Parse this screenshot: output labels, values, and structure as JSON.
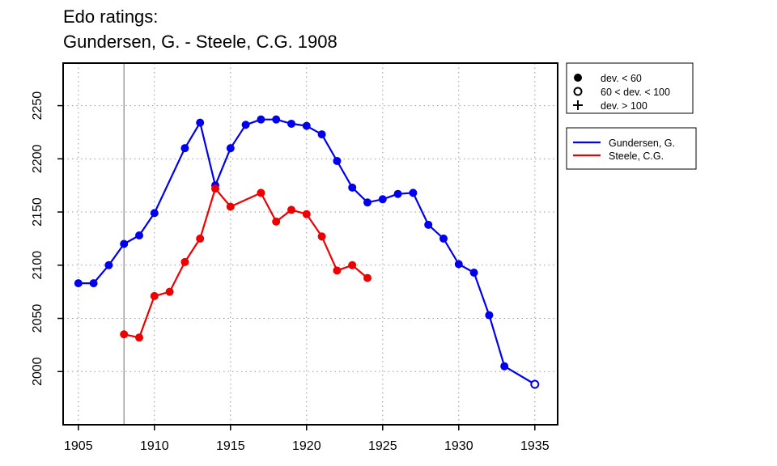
{
  "title": {
    "line1": "Edo ratings:",
    "line2": "Gundersen, G. - Steele, C.G. 1908"
  },
  "colors": {
    "gundersen": "#0000ee",
    "steele": "#ee0000",
    "axis": "#000000",
    "grid": "#999999",
    "marker_line": "#888888"
  },
  "legend_deviation": [
    {
      "symbol": "filled-circle",
      "label": "dev. < 60"
    },
    {
      "symbol": "open-circle",
      "label": "60 < dev. < 100"
    },
    {
      "symbol": "plus",
      "label": "dev. > 100"
    }
  ],
  "chart_data": {
    "type": "line",
    "title": "Edo ratings: Gundersen, G. - Steele, C.G. 1908",
    "xlabel": "",
    "ylabel": "",
    "xlim": [
      1904,
      1936.5
    ],
    "ylim": [
      1950,
      2290
    ],
    "xticks": [
      1905,
      1910,
      1915,
      1920,
      1925,
      1930,
      1935
    ],
    "yticks": [
      2000,
      2050,
      2100,
      2150,
      2200,
      2250
    ],
    "grid": true,
    "vertical_marker_year": 1908,
    "legend_position": "top-right outside plot",
    "series": [
      {
        "name": "Gundersen, G.",
        "color": "#0000ee",
        "points": [
          {
            "x": 1905,
            "y": 2083,
            "dev": "lt60"
          },
          {
            "x": 1906,
            "y": 2083,
            "dev": "lt60"
          },
          {
            "x": 1907,
            "y": 2100,
            "dev": "lt60"
          },
          {
            "x": 1908,
            "y": 2120,
            "dev": "lt60"
          },
          {
            "x": 1909,
            "y": 2128,
            "dev": "lt60"
          },
          {
            "x": 1910,
            "y": 2149,
            "dev": "lt60"
          },
          {
            "x": 1912,
            "y": 2210,
            "dev": "lt60"
          },
          {
            "x": 1913,
            "y": 2234,
            "dev": "lt60"
          },
          {
            "x": 1914,
            "y": 2175,
            "dev": "lt60"
          },
          {
            "x": 1915,
            "y": 2210,
            "dev": "lt60"
          },
          {
            "x": 1916,
            "y": 2232,
            "dev": "lt60"
          },
          {
            "x": 1917,
            "y": 2237,
            "dev": "lt60"
          },
          {
            "x": 1918,
            "y": 2237,
            "dev": "lt60"
          },
          {
            "x": 1919,
            "y": 2233,
            "dev": "lt60"
          },
          {
            "x": 1920,
            "y": 2231,
            "dev": "lt60"
          },
          {
            "x": 1921,
            "y": 2223,
            "dev": "lt60"
          },
          {
            "x": 1922,
            "y": 2198,
            "dev": "lt60"
          },
          {
            "x": 1923,
            "y": 2173,
            "dev": "lt60"
          },
          {
            "x": 1924,
            "y": 2159,
            "dev": "lt60"
          },
          {
            "x": 1925,
            "y": 2162,
            "dev": "lt60"
          },
          {
            "x": 1926,
            "y": 2167,
            "dev": "lt60"
          },
          {
            "x": 1927,
            "y": 2168,
            "dev": "lt60"
          },
          {
            "x": 1928,
            "y": 2138,
            "dev": "lt60"
          },
          {
            "x": 1929,
            "y": 2125,
            "dev": "lt60"
          },
          {
            "x": 1930,
            "y": 2101,
            "dev": "lt60"
          },
          {
            "x": 1931,
            "y": 2093,
            "dev": "lt60"
          },
          {
            "x": 1932,
            "y": 2053,
            "dev": "lt60"
          },
          {
            "x": 1933,
            "y": 2005,
            "dev": "lt60"
          },
          {
            "x": 1935,
            "y": 1988,
            "dev": "60to100"
          }
        ]
      },
      {
        "name": "Steele, C.G.",
        "color": "#ee0000",
        "points": [
          {
            "x": 1908,
            "y": 2035,
            "dev": "lt60"
          },
          {
            "x": 1909,
            "y": 2032,
            "dev": "lt60"
          },
          {
            "x": 1910,
            "y": 2071,
            "dev": "lt60"
          },
          {
            "x": 1911,
            "y": 2075,
            "dev": "lt60"
          },
          {
            "x": 1912,
            "y": 2103,
            "dev": "lt60"
          },
          {
            "x": 1913,
            "y": 2125,
            "dev": "lt60"
          },
          {
            "x": 1914,
            "y": 2172,
            "dev": "lt60"
          },
          {
            "x": 1915,
            "y": 2155,
            "dev": "lt60"
          },
          {
            "x": 1917,
            "y": 2168,
            "dev": "lt60"
          },
          {
            "x": 1918,
            "y": 2141,
            "dev": "lt60"
          },
          {
            "x": 1919,
            "y": 2152,
            "dev": "lt60"
          },
          {
            "x": 1920,
            "y": 2148,
            "dev": "lt60"
          },
          {
            "x": 1921,
            "y": 2127,
            "dev": "lt60"
          },
          {
            "x": 1922,
            "y": 2095,
            "dev": "lt60"
          },
          {
            "x": 1923,
            "y": 2100,
            "dev": "lt60"
          },
          {
            "x": 1924,
            "y": 2088,
            "dev": "lt60"
          }
        ]
      }
    ]
  }
}
